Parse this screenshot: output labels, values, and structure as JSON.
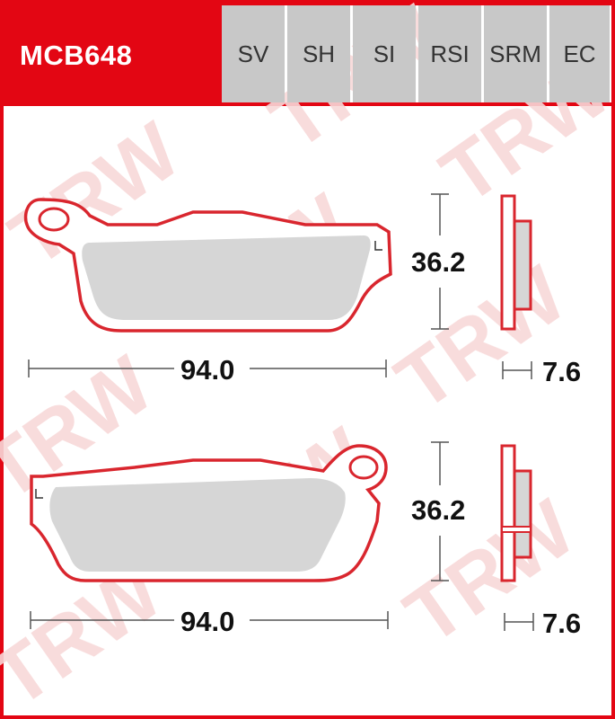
{
  "header": {
    "code": "MCB648",
    "tabs": [
      "SV",
      "SH",
      "SI",
      "RSI",
      "SRM",
      "EC"
    ]
  },
  "colors": {
    "brand_red": "#e30613",
    "tab_bg": "#c8c8c8",
    "pad_outline": "#d9262e",
    "friction_fill": "#d6d6d6",
    "watermark": "#f7d0d0"
  },
  "watermark_text": "TRW",
  "pads": [
    {
      "length": "94.0",
      "height": "36.2",
      "thickness": "7.6"
    },
    {
      "length": "94.0",
      "height": "36.2",
      "thickness": "7.6"
    }
  ]
}
